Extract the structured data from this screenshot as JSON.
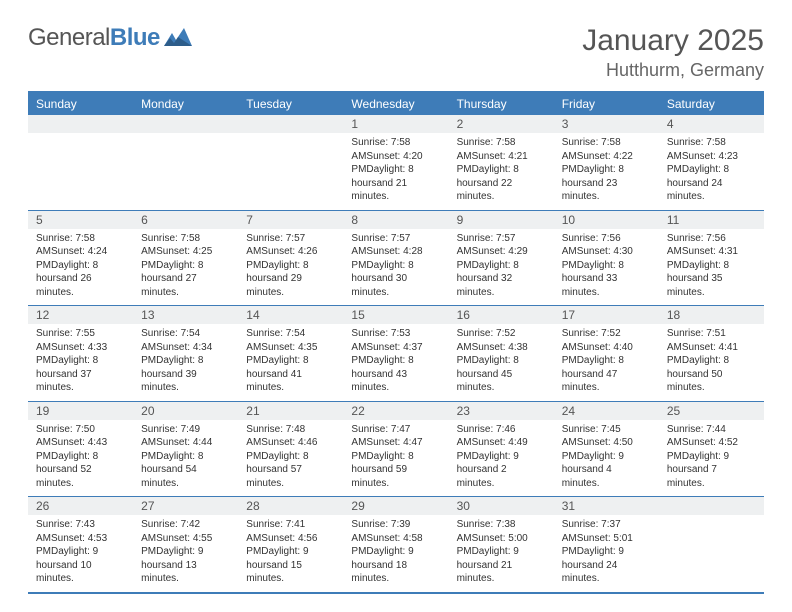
{
  "brand": {
    "name_a": "General",
    "name_b": "Blue"
  },
  "header": {
    "title": "January 2025",
    "location": "Hutthurm, Germany"
  },
  "colors": {
    "accent": "#3e7cb8",
    "daynum_bg": "#eef0f1",
    "text": "#555555",
    "body_text": "#333333",
    "background": "#ffffff"
  },
  "typography": {
    "title_size": 30,
    "subtitle_size": 18,
    "dow_size": 12,
    "daynum_size": 12,
    "detail_size": 10
  },
  "calendar": {
    "type": "table",
    "columns": 7,
    "dow": [
      "Sunday",
      "Monday",
      "Tuesday",
      "Wednesday",
      "Thursday",
      "Friday",
      "Saturday"
    ],
    "weeks": [
      [
        null,
        null,
        null,
        {
          "n": "1",
          "sunrise": "7:58 AM",
          "sunset": "4:20 PM",
          "day_h": 8,
          "day_m": 21
        },
        {
          "n": "2",
          "sunrise": "7:58 AM",
          "sunset": "4:21 PM",
          "day_h": 8,
          "day_m": 22
        },
        {
          "n": "3",
          "sunrise": "7:58 AM",
          "sunset": "4:22 PM",
          "day_h": 8,
          "day_m": 23
        },
        {
          "n": "4",
          "sunrise": "7:58 AM",
          "sunset": "4:23 PM",
          "day_h": 8,
          "day_m": 24
        }
      ],
      [
        {
          "n": "5",
          "sunrise": "7:58 AM",
          "sunset": "4:24 PM",
          "day_h": 8,
          "day_m": 26
        },
        {
          "n": "6",
          "sunrise": "7:58 AM",
          "sunset": "4:25 PM",
          "day_h": 8,
          "day_m": 27
        },
        {
          "n": "7",
          "sunrise": "7:57 AM",
          "sunset": "4:26 PM",
          "day_h": 8,
          "day_m": 29
        },
        {
          "n": "8",
          "sunrise": "7:57 AM",
          "sunset": "4:28 PM",
          "day_h": 8,
          "day_m": 30
        },
        {
          "n": "9",
          "sunrise": "7:57 AM",
          "sunset": "4:29 PM",
          "day_h": 8,
          "day_m": 32
        },
        {
          "n": "10",
          "sunrise": "7:56 AM",
          "sunset": "4:30 PM",
          "day_h": 8,
          "day_m": 33
        },
        {
          "n": "11",
          "sunrise": "7:56 AM",
          "sunset": "4:31 PM",
          "day_h": 8,
          "day_m": 35
        }
      ],
      [
        {
          "n": "12",
          "sunrise": "7:55 AM",
          "sunset": "4:33 PM",
          "day_h": 8,
          "day_m": 37
        },
        {
          "n": "13",
          "sunrise": "7:54 AM",
          "sunset": "4:34 PM",
          "day_h": 8,
          "day_m": 39
        },
        {
          "n": "14",
          "sunrise": "7:54 AM",
          "sunset": "4:35 PM",
          "day_h": 8,
          "day_m": 41
        },
        {
          "n": "15",
          "sunrise": "7:53 AM",
          "sunset": "4:37 PM",
          "day_h": 8,
          "day_m": 43
        },
        {
          "n": "16",
          "sunrise": "7:52 AM",
          "sunset": "4:38 PM",
          "day_h": 8,
          "day_m": 45
        },
        {
          "n": "17",
          "sunrise": "7:52 AM",
          "sunset": "4:40 PM",
          "day_h": 8,
          "day_m": 47
        },
        {
          "n": "18",
          "sunrise": "7:51 AM",
          "sunset": "4:41 PM",
          "day_h": 8,
          "day_m": 50
        }
      ],
      [
        {
          "n": "19",
          "sunrise": "7:50 AM",
          "sunset": "4:43 PM",
          "day_h": 8,
          "day_m": 52
        },
        {
          "n": "20",
          "sunrise": "7:49 AM",
          "sunset": "4:44 PM",
          "day_h": 8,
          "day_m": 54
        },
        {
          "n": "21",
          "sunrise": "7:48 AM",
          "sunset": "4:46 PM",
          "day_h": 8,
          "day_m": 57
        },
        {
          "n": "22",
          "sunrise": "7:47 AM",
          "sunset": "4:47 PM",
          "day_h": 8,
          "day_m": 59
        },
        {
          "n": "23",
          "sunrise": "7:46 AM",
          "sunset": "4:49 PM",
          "day_h": 9,
          "day_m": 2
        },
        {
          "n": "24",
          "sunrise": "7:45 AM",
          "sunset": "4:50 PM",
          "day_h": 9,
          "day_m": 4
        },
        {
          "n": "25",
          "sunrise": "7:44 AM",
          "sunset": "4:52 PM",
          "day_h": 9,
          "day_m": 7
        }
      ],
      [
        {
          "n": "26",
          "sunrise": "7:43 AM",
          "sunset": "4:53 PM",
          "day_h": 9,
          "day_m": 10
        },
        {
          "n": "27",
          "sunrise": "7:42 AM",
          "sunset": "4:55 PM",
          "day_h": 9,
          "day_m": 13
        },
        {
          "n": "28",
          "sunrise": "7:41 AM",
          "sunset": "4:56 PM",
          "day_h": 9,
          "day_m": 15
        },
        {
          "n": "29",
          "sunrise": "7:39 AM",
          "sunset": "4:58 PM",
          "day_h": 9,
          "day_m": 18
        },
        {
          "n": "30",
          "sunrise": "7:38 AM",
          "sunset": "5:00 PM",
          "day_h": 9,
          "day_m": 21
        },
        {
          "n": "31",
          "sunrise": "7:37 AM",
          "sunset": "5:01 PM",
          "day_h": 9,
          "day_m": 24
        },
        null
      ]
    ]
  }
}
